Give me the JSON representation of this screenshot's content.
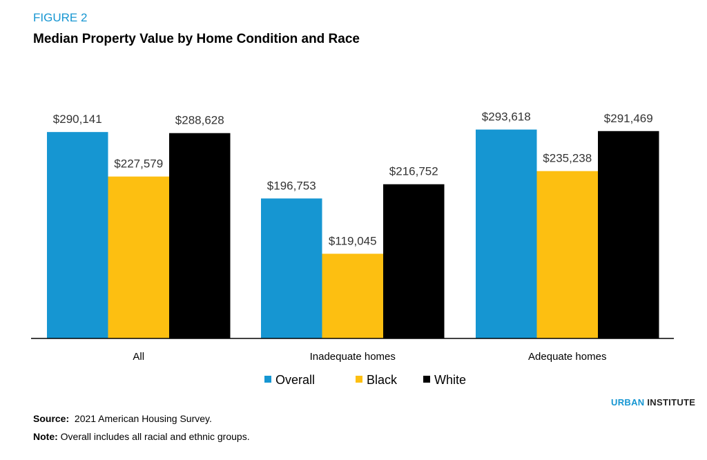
{
  "header": {
    "figure_label": "FIGURE 2"
  },
  "chart_data": {
    "type": "bar",
    "title": "Median Property Value by Home Condition and Race",
    "categories": [
      "All",
      "Inadequate homes",
      "Adequate homes"
    ],
    "series": [
      {
        "name": "Overall",
        "color": "#1696d2",
        "values": [
          290141,
          196753,
          293618
        ],
        "labels": [
          "$290,141",
          "$196,753",
          "$293,618"
        ]
      },
      {
        "name": "Black",
        "color": "#fdbf11",
        "values": [
          227579,
          119045,
          235238
        ],
        "labels": [
          "$227,579",
          "$119,045",
          "$235,238"
        ]
      },
      {
        "name": "White",
        "color": "#000000",
        "values": [
          288628,
          216752,
          291469
        ],
        "labels": [
          "$288,628",
          "$216,752",
          "$291,469"
        ]
      }
    ],
    "ylim": [
      0,
      300000
    ],
    "grid": false,
    "legend_placement": "bottom"
  },
  "footer": {
    "logo": {
      "part1": "URBAN",
      "part2": "INSTITUTE"
    },
    "source_label": "Source:",
    "source_text": "2021 American Housing Survey.",
    "note_label": "Note:",
    "note_text": "Overall includes all racial and ethnic groups."
  }
}
